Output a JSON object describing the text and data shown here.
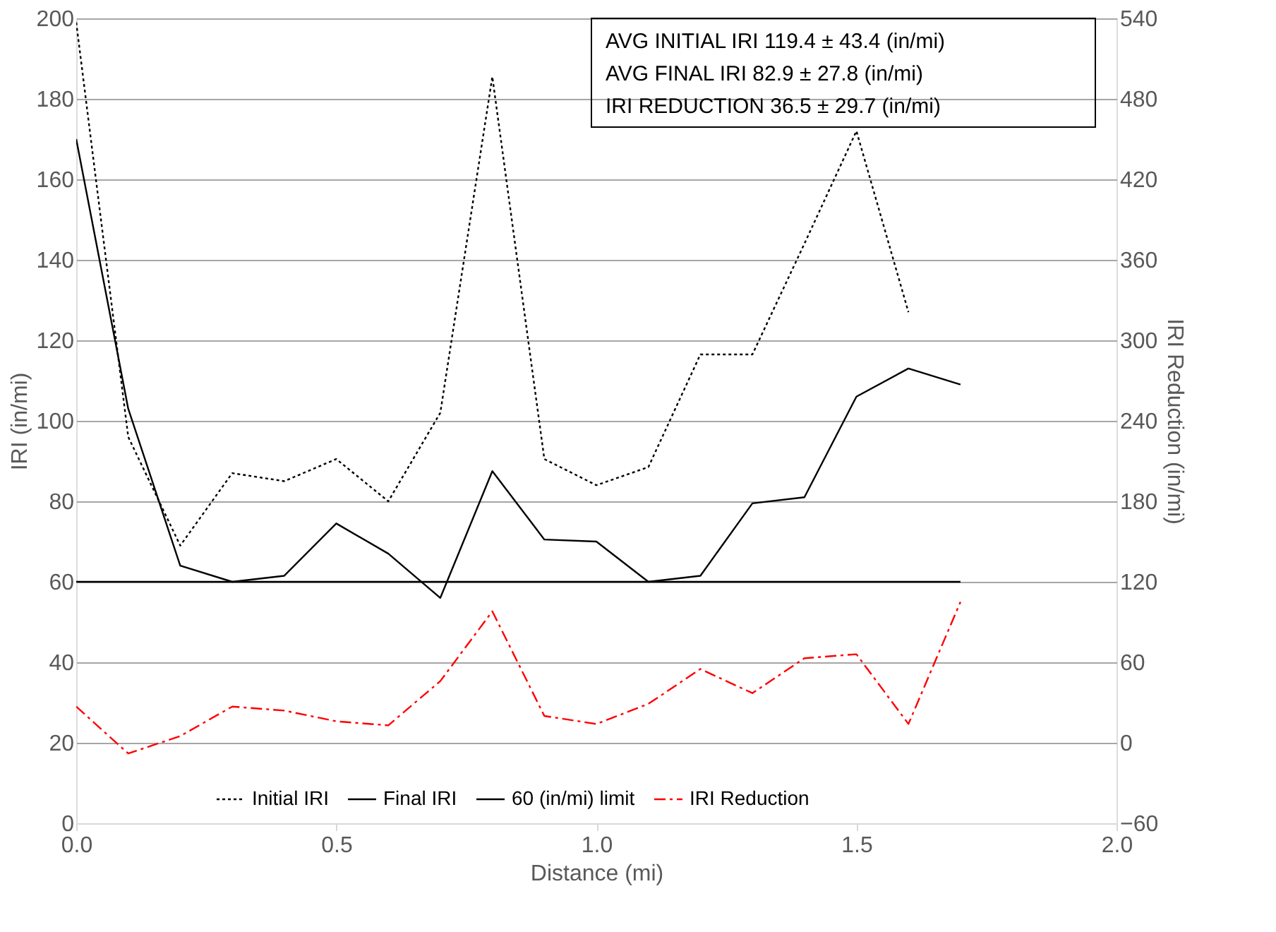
{
  "chart_data": {
    "type": "line",
    "xlabel": "Distance (mi)",
    "ylabel": "IRI (in/mi)",
    "y2label": "IRI Reduction (in/mi)",
    "x": [
      0.0,
      0.1,
      0.2,
      0.3,
      0.4,
      0.5,
      0.6,
      0.7,
      0.8,
      0.9,
      1.0,
      1.1,
      1.2,
      1.3,
      1.4,
      1.5,
      1.6,
      1.7
    ],
    "series": [
      {
        "name": "Initial IRI",
        "color": "#000000",
        "line_style": "dotted",
        "values": [
          199,
          96,
          69,
          87,
          85,
          90.5,
          80,
          102,
          185.5,
          90.5,
          84,
          88.5,
          116.5,
          116.5,
          144,
          172,
          127,
          null
        ]
      },
      {
        "name": "Final IRI",
        "color": "#000000",
        "line_style": "solid",
        "values": [
          170,
          103,
          64,
          60,
          61.5,
          74.5,
          67,
          56,
          87.5,
          70.5,
          70,
          60,
          61.5,
          79.5,
          81,
          106,
          113,
          109
        ]
      },
      {
        "name": "60 (in/mi) limit",
        "color": "#000000",
        "line_style": "solid",
        "values": [
          60,
          60,
          60,
          60,
          60,
          60,
          60,
          60,
          60,
          60,
          60,
          60,
          60,
          60,
          60,
          60,
          60,
          60
        ]
      },
      {
        "name": "IRI Reduction",
        "color": "#ff0000",
        "line_style": "dashdot",
        "axis": "y2",
        "values": [
          27,
          -8,
          5,
          27,
          24,
          16,
          13,
          46,
          98,
          20,
          14,
          29,
          55,
          37,
          63,
          66,
          14,
          105
        ]
      }
    ],
    "xlim": [
      0,
      2
    ],
    "xticks": [
      {
        "value": 0,
        "label": "0.0"
      },
      {
        "value": 0.5,
        "label": "0.5"
      },
      {
        "value": 1,
        "label": "1.0"
      },
      {
        "value": 1.5,
        "label": "1.5"
      },
      {
        "value": 2,
        "label": "2.0"
      }
    ],
    "ylim": [
      0,
      200
    ],
    "yticks": [
      0,
      20,
      40,
      60,
      80,
      100,
      120,
      140,
      160,
      180,
      200
    ],
    "y2lim": [
      -60,
      540
    ],
    "y2ticks": [
      -60,
      0,
      60,
      120,
      180,
      240,
      300,
      360,
      420,
      480,
      540
    ],
    "grid": "y",
    "legend": "bottom",
    "annotations": [
      "AVG INITIAL IRI  119.4  ±  43.4  (in/mi)",
      "AVG FINAL  IRI   82.9  ±  27.8  (in/mi)",
      "IRI REDUCTION  36.5  ±  29.7  (in/mi)"
    ]
  }
}
